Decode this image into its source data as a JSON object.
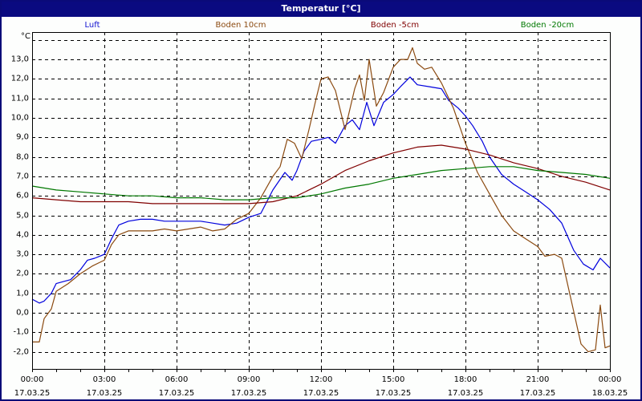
{
  "window": {
    "title": "Temperatur [°C]"
  },
  "chart_data": {
    "type": "line",
    "title": "Temperatur [°C]",
    "xlabel": "",
    "ylabel": "°C",
    "ylim": [
      -3.0,
      14.0
    ],
    "xlim_hours": [
      0,
      24
    ],
    "grid": true,
    "legend_position": "top",
    "y_ticks": [
      "13,0",
      "12,0",
      "11,0",
      "10,0",
      "9,0",
      "8,0",
      "7,0",
      "6,0",
      "5,0",
      "4,0",
      "3,0",
      "2,0",
      "1,0",
      "0,0",
      "-1,0",
      "-2,0"
    ],
    "y_tick_values": [
      13,
      12,
      11,
      10,
      9,
      8,
      7,
      6,
      5,
      4,
      3,
      2,
      1,
      0,
      -1,
      -2
    ],
    "x_ticks": [
      {
        "time": "00:00",
        "date": "17.03.25",
        "hour": 0
      },
      {
        "time": "03:00",
        "date": "17.03.25",
        "hour": 3
      },
      {
        "time": "06:00",
        "date": "17.03.25",
        "hour": 6
      },
      {
        "time": "09:00",
        "date": "17.03.25",
        "hour": 9
      },
      {
        "time": "12:00",
        "date": "17.03.25",
        "hour": 12
      },
      {
        "time": "15:00",
        "date": "17.03.25",
        "hour": 15
      },
      {
        "time": "18:00",
        "date": "17.03.25",
        "hour": 18
      },
      {
        "time": "21:00",
        "date": "17.03.25",
        "hour": 21
      },
      {
        "time": "00:00",
        "date": "18.03.25",
        "hour": 24
      }
    ],
    "series": [
      {
        "name": "Luft",
        "color": "#0000dd",
        "x": [
          0,
          0.3,
          0.5,
          0.8,
          1,
          1.3,
          1.6,
          2,
          2.3,
          2.6,
          3,
          3.3,
          3.6,
          4,
          4.5,
          5,
          5.5,
          6,
          6.5,
          7,
          7.5,
          8,
          8.5,
          9,
          9.5,
          10,
          10.5,
          10.8,
          11,
          11.3,
          11.6,
          12,
          12.3,
          12.6,
          13,
          13.3,
          13.6,
          13.9,
          14.2,
          14.6,
          15,
          15.3,
          15.7,
          16,
          16.5,
          17,
          17.3,
          17.7,
          18,
          18.3,
          18.7,
          19,
          19.5,
          20,
          20.5,
          21,
          21.5,
          22,
          22.5,
          22.9,
          23.3,
          23.6,
          24
        ],
        "values": [
          0.7,
          0.5,
          0.6,
          1.0,
          1.5,
          1.6,
          1.7,
          2.2,
          2.7,
          2.8,
          3.0,
          3.8,
          4.5,
          4.7,
          4.8,
          4.8,
          4.7,
          4.7,
          4.7,
          4.7,
          4.6,
          4.5,
          4.6,
          4.9,
          5.1,
          6.3,
          7.2,
          6.8,
          7.3,
          8.3,
          8.8,
          8.9,
          9.0,
          8.7,
          9.6,
          9.9,
          9.4,
          10.8,
          9.6,
          10.8,
          11.2,
          11.6,
          12.1,
          11.7,
          11.6,
          11.5,
          10.9,
          10.5,
          10.1,
          9.6,
          8.8,
          8.0,
          7.1,
          6.6,
          6.2,
          5.8,
          5.3,
          4.6,
          3.2,
          2.5,
          2.2,
          2.8,
          2.3
        ]
      },
      {
        "name": "Boden 10cm",
        "color": "#8b4a10",
        "x": [
          0,
          0.3,
          0.5,
          0.8,
          1,
          1.5,
          2,
          2.5,
          3,
          3.3,
          3.6,
          4,
          4.5,
          5,
          5.5,
          6,
          6.5,
          7,
          7.5,
          8,
          8.5,
          9,
          9.5,
          10,
          10.3,
          10.6,
          10.9,
          11.2,
          11.5,
          11.8,
          12,
          12.3,
          12.6,
          13,
          13.4,
          13.6,
          13.8,
          14,
          14.3,
          14.6,
          15,
          15.3,
          15.6,
          15.8,
          16,
          16.3,
          16.6,
          17,
          17.5,
          18,
          18.5,
          19,
          19.5,
          20,
          20.5,
          21,
          21.3,
          21.7,
          22,
          22.4,
          22.8,
          23.1,
          23.4,
          23.6,
          23.8,
          24
        ],
        "values": [
          -1.5,
          -1.5,
          -0.3,
          0.2,
          1.1,
          1.5,
          2.0,
          2.4,
          2.7,
          3.5,
          4.0,
          4.2,
          4.2,
          4.2,
          4.3,
          4.2,
          4.3,
          4.4,
          4.2,
          4.3,
          4.8,
          5.1,
          5.9,
          7.0,
          7.5,
          8.9,
          8.7,
          7.9,
          9.4,
          11.0,
          12.0,
          12.1,
          11.4,
          9.4,
          11.5,
          12.2,
          10.9,
          13.0,
          10.6,
          11.3,
          12.6,
          13.0,
          13.0,
          13.6,
          12.8,
          12.5,
          12.6,
          11.8,
          10.5,
          8.7,
          7.2,
          6.1,
          5.0,
          4.2,
          3.8,
          3.4,
          2.9,
          3.0,
          2.8,
          0.6,
          -1.6,
          -2.0,
          -1.9,
          0.4,
          -1.8,
          -1.7
        ]
      },
      {
        "name": "Boden -5cm",
        "color": "#800000",
        "x": [
          0,
          1,
          2,
          3,
          4,
          5,
          6,
          7,
          8,
          9,
          10,
          11,
          12,
          13,
          14,
          15,
          16,
          17,
          18,
          19,
          20,
          21,
          22,
          23,
          24
        ],
        "values": [
          5.9,
          5.8,
          5.7,
          5.7,
          5.7,
          5.6,
          5.6,
          5.6,
          5.6,
          5.6,
          5.7,
          6.0,
          6.6,
          7.3,
          7.8,
          8.2,
          8.5,
          8.6,
          8.4,
          8.1,
          7.7,
          7.4,
          7.0,
          6.7,
          6.3
        ]
      },
      {
        "name": "Boden -20cm",
        "color": "#007800",
        "x": [
          0,
          1,
          2,
          3,
          4,
          5,
          6,
          7,
          8,
          9,
          10,
          11,
          12,
          13,
          14,
          15,
          16,
          17,
          18,
          19,
          20,
          21,
          22,
          23,
          24
        ],
        "values": [
          6.5,
          6.3,
          6.2,
          6.1,
          6.0,
          6.0,
          5.9,
          5.9,
          5.8,
          5.8,
          5.9,
          5.9,
          6.1,
          6.4,
          6.6,
          6.9,
          7.1,
          7.3,
          7.4,
          7.5,
          7.5,
          7.3,
          7.2,
          7.1,
          6.9
        ]
      }
    ]
  },
  "legend": [
    {
      "label": "Luft",
      "color": "#1010d0"
    },
    {
      "label": "Boden 10cm",
      "color": "#8b4a10"
    },
    {
      "label": "Boden -5cm",
      "color": "#800000"
    },
    {
      "label": "Boden -20cm",
      "color": "#007800"
    }
  ],
  "axis": {
    "unit_label": "°C"
  }
}
